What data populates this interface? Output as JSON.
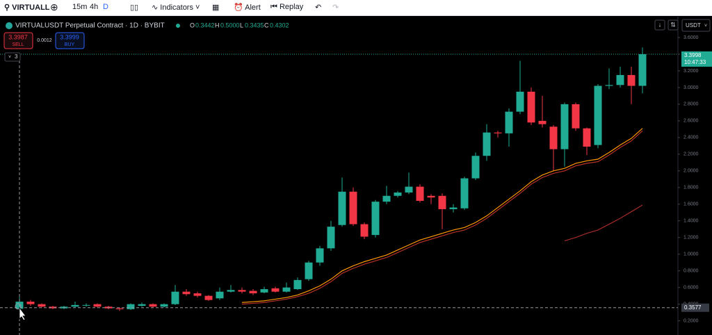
{
  "toolbar": {
    "symbol": "VIRTUALL",
    "intervals": [
      "15m",
      "4h",
      "D"
    ],
    "indicators": "Indicators",
    "alert": "Alert",
    "replay": "Replay"
  },
  "header": {
    "title": "VIRTUALUSDT Perpetual Contract · 1D · BYBIT",
    "o_label": "O",
    "o": "0.3442",
    "h_label": "H",
    "h": "0.5000",
    "l_label": "L",
    "l": "0.3435",
    "c_label": "C",
    "c": "0.4302"
  },
  "trade": {
    "sell_price": "3.3987",
    "sell": "SELL",
    "spread": "0.0012",
    "buy_price": "3.3999",
    "buy": "BUY"
  },
  "chart_data": {
    "type": "candlestick",
    "currency": "USDT",
    "collapse_count": "3",
    "countdown": "10:47:33",
    "last_price": 3.3998,
    "crosshair_price": 0.3577,
    "up_color": "#22ab94",
    "down_color": "#f23645",
    "open": [
      0.3442,
      0.43,
      0.4,
      0.37,
      0.35,
      0.37,
      0.39,
      0.4,
      0.37,
      0.35,
      0.34,
      0.38,
      0.4,
      0.37,
      0.4,
      0.55,
      0.53,
      0.5,
      0.47,
      0.55,
      0.57,
      0.56,
      0.54,
      0.59,
      0.55,
      0.58,
      0.7,
      0.9,
      1.07,
      1.35,
      1.75,
      1.36,
      1.23,
      1.63,
      1.7,
      1.74,
      1.81,
      1.7,
      1.7,
      1.54,
      1.55,
      1.91,
      2.18,
      2.46,
      2.45,
      2.71,
      2.95,
      2.6,
      2.53,
      2.26,
      2.8,
      2.51,
      2.31,
      3.02,
      3.03,
      3.15,
      3.02
    ],
    "high": [
      0.5,
      0.45,
      0.41,
      0.38,
      0.38,
      0.43,
      0.41,
      0.41,
      0.38,
      0.36,
      0.41,
      0.42,
      0.41,
      0.41,
      0.63,
      0.58,
      0.55,
      0.51,
      0.6,
      0.63,
      0.6,
      0.58,
      0.61,
      0.61,
      0.66,
      0.72,
      0.92,
      1.1,
      1.4,
      1.92,
      1.8,
      1.38,
      1.65,
      1.82,
      1.76,
      1.98,
      1.84,
      1.72,
      1.73,
      1.6,
      1.93,
      2.22,
      2.56,
      2.48,
      2.75,
      3.32,
      3.0,
      2.9,
      2.55,
      2.82,
      2.82,
      2.52,
      3.04,
      3.23,
      3.25,
      3.25,
      3.48
    ],
    "low": [
      0.3435,
      0.38,
      0.36,
      0.34,
      0.34,
      0.36,
      0.37,
      0.36,
      0.34,
      0.32,
      0.33,
      0.37,
      0.36,
      0.36,
      0.39,
      0.5,
      0.48,
      0.44,
      0.45,
      0.54,
      0.53,
      0.51,
      0.53,
      0.54,
      0.54,
      0.57,
      0.68,
      0.86,
      1.04,
      1.33,
      1.34,
      1.18,
      1.2,
      1.6,
      1.68,
      1.72,
      1.62,
      1.6,
      1.3,
      1.5,
      1.53,
      1.89,
      2.12,
      2.4,
      2.29,
      2.68,
      2.55,
      2.52,
      2.0,
      2.05,
      2.48,
      2.19,
      2.27,
      2.98,
      3.0,
      2.8,
      2.93
    ],
    "close": [
      0.4302,
      0.4,
      0.37,
      0.35,
      0.37,
      0.39,
      0.39,
      0.37,
      0.35,
      0.34,
      0.4,
      0.4,
      0.37,
      0.4,
      0.55,
      0.52,
      0.5,
      0.45,
      0.55,
      0.57,
      0.55,
      0.53,
      0.58,
      0.55,
      0.6,
      0.69,
      0.9,
      1.07,
      1.33,
      1.75,
      1.36,
      1.21,
      1.63,
      1.7,
      1.74,
      1.81,
      1.64,
      1.68,
      1.54,
      1.56,
      1.91,
      2.18,
      2.46,
      2.45,
      2.71,
      2.95,
      2.58,
      2.56,
      2.26,
      2.8,
      2.51,
      2.29,
      3.02,
      3.03,
      3.15,
      3.02,
      3.3998
    ],
    "ma_lines": [
      {
        "color": "#ff9800",
        "values": [
          null,
          null,
          null,
          null,
          null,
          null,
          null,
          null,
          null,
          null,
          null,
          null,
          null,
          null,
          null,
          null,
          null,
          null,
          null,
          null,
          0.42,
          0.43,
          0.44,
          0.46,
          0.48,
          0.51,
          0.56,
          0.62,
          0.7,
          0.8,
          0.86,
          0.91,
          0.95,
          0.99,
          1.05,
          1.11,
          1.17,
          1.21,
          1.25,
          1.29,
          1.32,
          1.38,
          1.46,
          1.56,
          1.66,
          1.76,
          1.87,
          1.95,
          2.0,
          2.03,
          2.09,
          2.12,
          2.14,
          2.22,
          2.31,
          2.39,
          2.51
        ]
      },
      {
        "color": "#b83227",
        "values": [
          null,
          null,
          null,
          null,
          null,
          null,
          null,
          null,
          null,
          null,
          null,
          null,
          null,
          null,
          null,
          null,
          null,
          null,
          null,
          null,
          0.4,
          0.41,
          0.42,
          0.44,
          0.46,
          0.49,
          0.53,
          0.59,
          0.67,
          0.77,
          0.83,
          0.88,
          0.92,
          0.96,
          1.02,
          1.08,
          1.14,
          1.18,
          1.22,
          1.26,
          1.29,
          1.35,
          1.43,
          1.53,
          1.63,
          1.73,
          1.84,
          1.92,
          1.97,
          2.0,
          2.06,
          2.09,
          2.11,
          2.19,
          2.28,
          2.36,
          2.48
        ]
      },
      {
        "color": "#a52a2a",
        "values": [
          null,
          null,
          null,
          null,
          null,
          null,
          null,
          null,
          null,
          null,
          null,
          null,
          null,
          null,
          null,
          null,
          null,
          null,
          null,
          null,
          null,
          null,
          null,
          null,
          null,
          null,
          null,
          null,
          null,
          null,
          null,
          null,
          null,
          null,
          null,
          null,
          null,
          null,
          null,
          null,
          null,
          null,
          null,
          null,
          null,
          null,
          null,
          null,
          null,
          1.16,
          1.2,
          1.25,
          1.29,
          1.36,
          1.43,
          1.51,
          1.59
        ]
      }
    ],
    "ylim": [
      0.03,
      3.85
    ],
    "yticks": [
      {
        "value": 0.2,
        "label": "0.2000"
      },
      {
        "value": 0.4,
        "label": "0.4000"
      },
      {
        "value": 0.6,
        "label": "0.6000"
      },
      {
        "value": 0.8,
        "label": "0.8000"
      },
      {
        "value": 1,
        "label": "1.0000"
      },
      {
        "value": 1.2,
        "label": "1.2000"
      },
      {
        "value": 1.4,
        "label": "1.4000"
      },
      {
        "value": 1.6,
        "label": "1.6000"
      },
      {
        "value": 1.8,
        "label": "1.8000"
      },
      {
        "value": 2,
        "label": "2.0000"
      },
      {
        "value": 2.2,
        "label": "2.2000"
      },
      {
        "value": 2.4,
        "label": "2.4000"
      },
      {
        "value": 2.6,
        "label": "2.6000"
      },
      {
        "value": 2.8,
        "label": "2.8000"
      },
      {
        "value": 3,
        "label": "3.0000"
      },
      {
        "value": 3.2,
        "label": "3.2000"
      },
      {
        "value": 3.4,
        "label": "3.4000"
      },
      {
        "value": 3.6,
        "label": "3.6000"
      }
    ]
  }
}
